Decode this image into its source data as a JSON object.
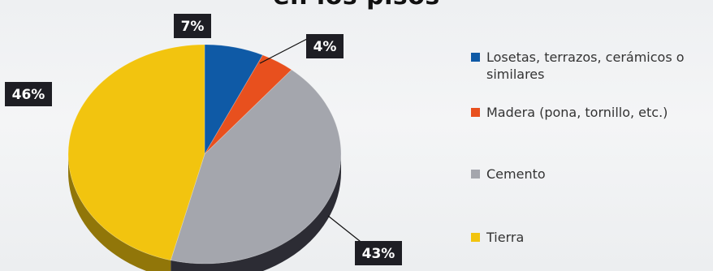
{
  "title": "en los pisos",
  "chart_data": {
    "type": "pie",
    "title": "en los pisos",
    "slices": [
      {
        "label": "Losetas, terrazos, cerámicos o similares",
        "value": 7,
        "display": "7%",
        "color": "#0f5aa6"
      },
      {
        "label": "Madera (pona, tornillo, etc.)",
        "value": 4,
        "display": "4%",
        "color": "#e8501e"
      },
      {
        "label": "Cemento",
        "value": 43,
        "display": "43%",
        "color": "#a4a6ad"
      },
      {
        "label": "Tierra",
        "value": 46,
        "display": "46%",
        "color": "#f2c40f"
      }
    ],
    "legend_position": "right"
  }
}
